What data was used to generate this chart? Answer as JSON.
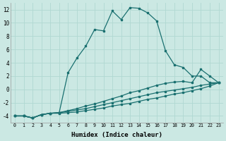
{
  "xlabel": "Humidex (Indice chaleur)",
  "bg_color": "#cbe8e3",
  "line_color": "#1a7070",
  "grid_color": "#b0d8d2",
  "xlim": [
    -0.5,
    23.5
  ],
  "ylim": [
    -5,
    13
  ],
  "xticks": [
    0,
    1,
    2,
    3,
    4,
    5,
    6,
    7,
    8,
    9,
    10,
    11,
    12,
    13,
    14,
    15,
    16,
    17,
    18,
    19,
    20,
    21,
    22,
    23
  ],
  "yticks": [
    -4,
    -2,
    0,
    2,
    4,
    6,
    8,
    10,
    12
  ],
  "main_y": [
    -4,
    -4,
    -4.3,
    -3.8,
    -3.6,
    -3.5,
    2.5,
    4.7,
    6.5,
    9.0,
    8.8,
    11.8,
    10.5,
    12.3,
    12.2,
    11.5,
    10.3,
    5.8,
    3.7,
    3.3,
    2.0,
    2.0,
    1.0,
    1.0
  ],
  "line1_y": [
    -4,
    -4,
    -4.3,
    -3.8,
    -3.6,
    -3.5,
    -3.2,
    -2.9,
    -2.5,
    -2.2,
    -1.8,
    -1.4,
    -1.0,
    -0.5,
    -0.2,
    0.2,
    0.6,
    0.9,
    1.1,
    1.2,
    1.0,
    3.0,
    2.0,
    1.0
  ],
  "line2_y": [
    -4,
    -4,
    -4.3,
    -3.8,
    -3.6,
    -3.5,
    -3.3,
    -3.1,
    -2.9,
    -2.6,
    -2.3,
    -2.0,
    -1.7,
    -1.4,
    -1.1,
    -0.8,
    -0.5,
    -0.3,
    -0.1,
    0.1,
    0.3,
    0.6,
    0.8,
    1.0
  ],
  "line3_y": [
    -4,
    -4,
    -4.3,
    -3.8,
    -3.6,
    -3.6,
    -3.5,
    -3.4,
    -3.2,
    -3.0,
    -2.8,
    -2.5,
    -2.3,
    -2.1,
    -1.8,
    -1.5,
    -1.3,
    -1.0,
    -0.7,
    -0.5,
    -0.2,
    0.1,
    0.5,
    1.0
  ]
}
